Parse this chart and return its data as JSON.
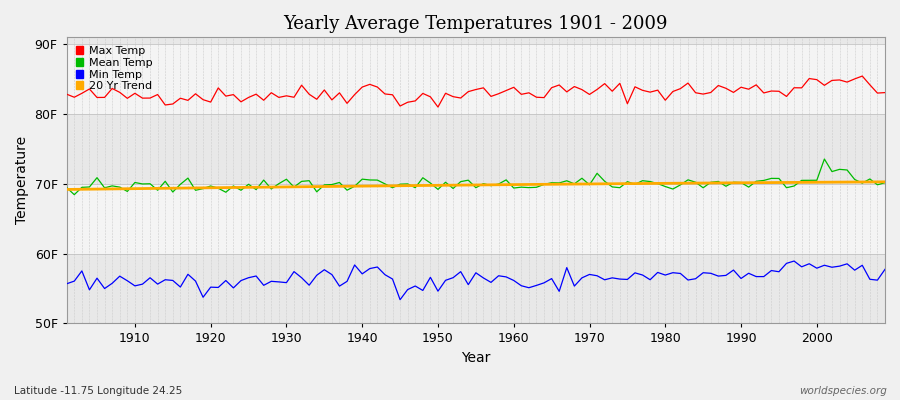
{
  "title": "Yearly Average Temperatures 1901 - 2009",
  "xlabel": "Year",
  "ylabel": "Temperature",
  "background_color": "#f0f0f0",
  "plot_bg_color": "#f0f0f0",
  "band_colors": [
    "#e8e8e8",
    "#f4f4f4"
  ],
  "years_start": 1901,
  "years_end": 2009,
  "yticks": [
    50,
    60,
    70,
    80,
    90
  ],
  "ytick_labels": [
    "50F",
    "60F",
    "70F",
    "80F",
    "90F"
  ],
  "ylim": [
    50,
    91
  ],
  "xlim": [
    1901,
    2009
  ],
  "legend_labels": [
    "Max Temp",
    "Mean Temp",
    "Min Temp",
    "20 Yr Trend"
  ],
  "legend_colors": [
    "#ff0000",
    "#00bb00",
    "#0000ff",
    "#ffaa00"
  ],
  "watermark": "worldspecies.org",
  "footnote": "Latitude -11.75 Longitude 24.25",
  "grid_color": "#cccccc",
  "line_color_max": "#ff0000",
  "line_color_mean": "#00bb00",
  "line_color_min": "#0000ff",
  "line_color_trend": "#ffaa00"
}
